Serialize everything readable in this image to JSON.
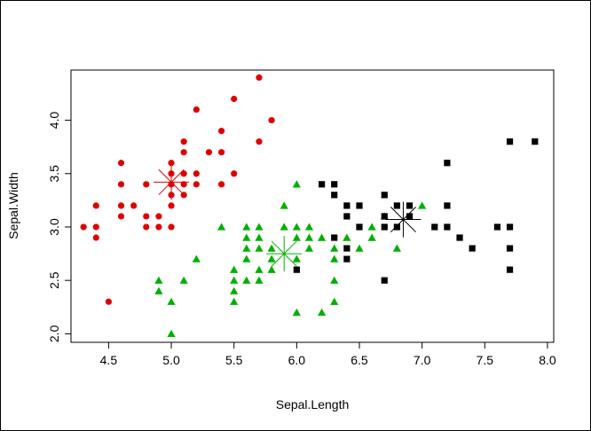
{
  "chart_data": {
    "type": "scatter",
    "title": "",
    "xlabel": "Sepal.Length",
    "ylabel": "Sepal.Width",
    "xlim": [
      4.2,
      8.05
    ],
    "ylim": [
      1.92,
      4.47
    ],
    "xticks": [
      "4.5",
      "5.0",
      "5.5",
      "6.0",
      "6.5",
      "7.0",
      "7.5",
      "8.0"
    ],
    "yticks": [
      "2.0",
      "2.5",
      "3.0",
      "3.5",
      "4.0"
    ],
    "grid": false,
    "colors": {
      "cluster1": "#e00000",
      "cluster2": "#00b000",
      "cluster3": "#000000"
    },
    "series": [
      {
        "marker": "circle",
        "color": "#e00000",
        "points": [
          [
            4.3,
            3.0
          ],
          [
            4.4,
            2.9
          ],
          [
            4.4,
            3.0
          ],
          [
            4.4,
            3.2
          ],
          [
            4.5,
            2.3
          ],
          [
            4.6,
            3.1
          ],
          [
            4.6,
            3.2
          ],
          [
            4.6,
            3.4
          ],
          [
            4.6,
            3.6
          ],
          [
            4.7,
            3.2
          ],
          [
            4.8,
            3.0
          ],
          [
            4.8,
            3.1
          ],
          [
            4.8,
            3.4
          ],
          [
            4.9,
            3.0
          ],
          [
            4.9,
            3.1
          ],
          [
            5.0,
            3.0
          ],
          [
            5.0,
            3.2
          ],
          [
            5.0,
            3.3
          ],
          [
            5.0,
            3.4
          ],
          [
            5.0,
            3.5
          ],
          [
            5.0,
            3.6
          ],
          [
            5.1,
            3.3
          ],
          [
            5.1,
            3.4
          ],
          [
            5.1,
            3.5
          ],
          [
            5.1,
            3.7
          ],
          [
            5.1,
            3.8
          ],
          [
            5.2,
            3.4
          ],
          [
            5.2,
            3.5
          ],
          [
            5.2,
            4.1
          ],
          [
            5.3,
            3.7
          ],
          [
            5.4,
            3.4
          ],
          [
            5.4,
            3.7
          ],
          [
            5.4,
            3.9
          ],
          [
            5.5,
            3.5
          ],
          [
            5.5,
            4.2
          ],
          [
            5.7,
            3.8
          ],
          [
            5.7,
            4.4
          ],
          [
            5.8,
            4.0
          ]
        ],
        "center": [
          5.0,
          3.42
        ]
      },
      {
        "marker": "triangle",
        "color": "#00b000",
        "points": [
          [
            4.9,
            2.4
          ],
          [
            4.9,
            2.5
          ],
          [
            5.0,
            2.0
          ],
          [
            5.0,
            2.3
          ],
          [
            5.1,
            2.5
          ],
          [
            5.2,
            2.7
          ],
          [
            5.4,
            3.0
          ],
          [
            5.5,
            2.3
          ],
          [
            5.5,
            2.4
          ],
          [
            5.5,
            2.5
          ],
          [
            5.5,
            2.6
          ],
          [
            5.6,
            2.5
          ],
          [
            5.6,
            2.7
          ],
          [
            5.6,
            2.8
          ],
          [
            5.6,
            2.9
          ],
          [
            5.6,
            3.0
          ],
          [
            5.7,
            2.5
          ],
          [
            5.7,
            2.6
          ],
          [
            5.7,
            2.8
          ],
          [
            5.7,
            2.9
          ],
          [
            5.7,
            3.0
          ],
          [
            5.8,
            2.6
          ],
          [
            5.8,
            2.7
          ],
          [
            5.8,
            2.8
          ],
          [
            5.9,
            3.0
          ],
          [
            5.9,
            3.2
          ],
          [
            6.0,
            2.2
          ],
          [
            6.0,
            2.7
          ],
          [
            6.0,
            2.9
          ],
          [
            6.0,
            3.0
          ],
          [
            6.0,
            3.4
          ],
          [
            6.1,
            2.8
          ],
          [
            6.1,
            2.9
          ],
          [
            6.1,
            3.0
          ],
          [
            6.2,
            2.2
          ],
          [
            6.2,
            2.9
          ],
          [
            6.3,
            2.3
          ],
          [
            6.3,
            2.5
          ],
          [
            6.3,
            2.7
          ],
          [
            6.3,
            2.8
          ],
          [
            6.4,
            2.9
          ],
          [
            6.5,
            2.8
          ],
          [
            6.6,
            2.9
          ],
          [
            6.6,
            3.0
          ],
          [
            6.7,
            3.1
          ],
          [
            6.8,
            2.8
          ],
          [
            7.0,
            3.2
          ]
        ],
        "center": [
          5.9,
          2.75
        ]
      },
      {
        "marker": "square",
        "color": "#000000",
        "points": [
          [
            6.0,
            2.6
          ],
          [
            6.2,
            3.4
          ],
          [
            6.3,
            2.9
          ],
          [
            6.3,
            3.3
          ],
          [
            6.3,
            3.4
          ],
          [
            6.4,
            2.7
          ],
          [
            6.4,
            2.8
          ],
          [
            6.4,
            3.1
          ],
          [
            6.4,
            3.2
          ],
          [
            6.5,
            3.0
          ],
          [
            6.5,
            3.2
          ],
          [
            6.7,
            2.5
          ],
          [
            6.7,
            3.0
          ],
          [
            6.7,
            3.1
          ],
          [
            6.7,
            3.3
          ],
          [
            6.8,
            3.0
          ],
          [
            6.8,
            3.2
          ],
          [
            6.9,
            3.1
          ],
          [
            6.9,
            3.2
          ],
          [
            7.1,
            3.0
          ],
          [
            7.2,
            3.0
          ],
          [
            7.2,
            3.2
          ],
          [
            7.2,
            3.6
          ],
          [
            7.3,
            2.9
          ],
          [
            7.4,
            2.8
          ],
          [
            7.6,
            3.0
          ],
          [
            7.7,
            2.6
          ],
          [
            7.7,
            2.8
          ],
          [
            7.7,
            3.0
          ],
          [
            7.7,
            3.8
          ],
          [
            7.9,
            3.8
          ]
        ],
        "center": [
          6.85,
          3.07
        ]
      }
    ]
  }
}
